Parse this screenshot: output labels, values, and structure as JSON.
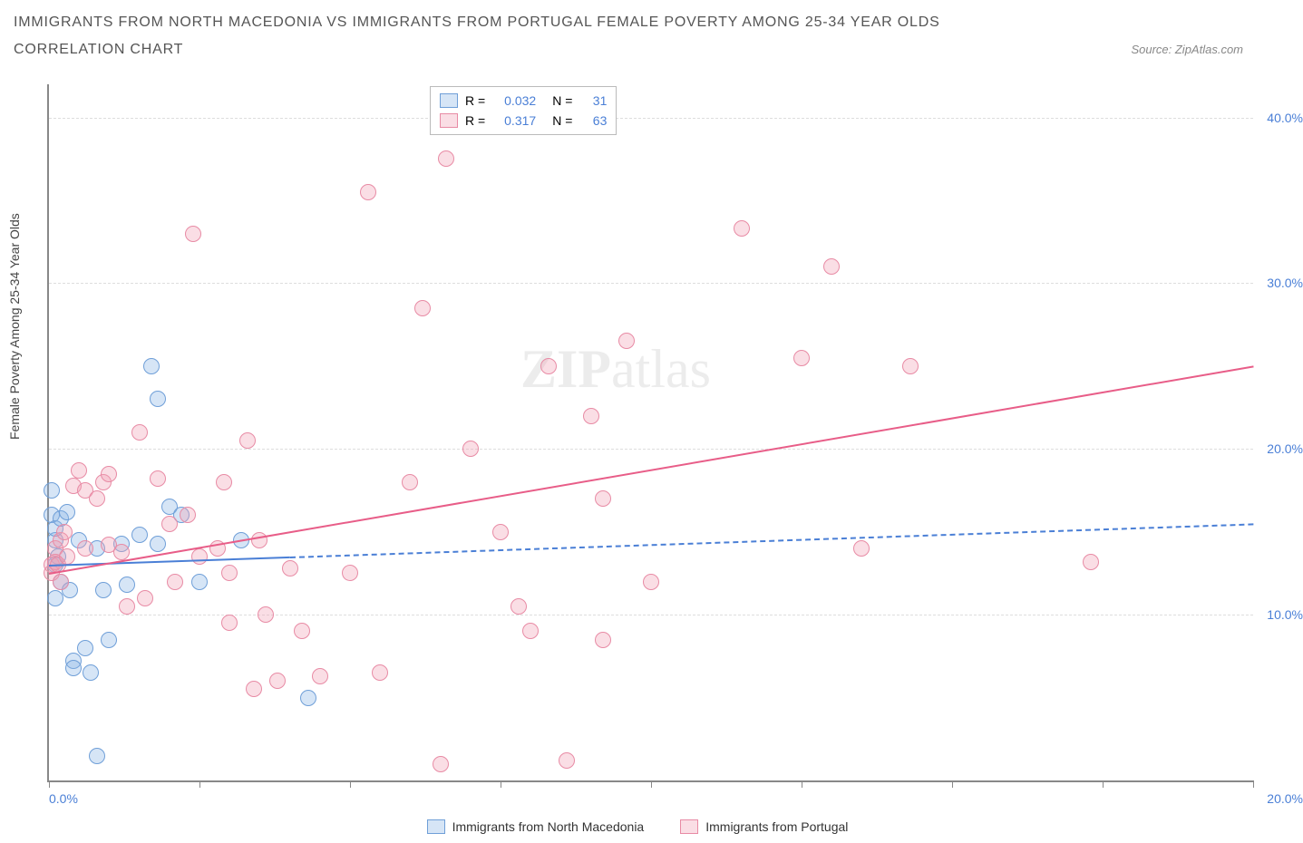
{
  "title_line1": "IMMIGRANTS FROM NORTH MACEDONIA VS IMMIGRANTS FROM PORTUGAL FEMALE POVERTY AMONG 25-34 YEAR OLDS",
  "title_line2": "CORRELATION CHART",
  "source_label": "Source: ZipAtlas.com",
  "y_axis_label": "Female Poverty Among 25-34 Year Olds",
  "watermark_bold": "ZIP",
  "watermark_rest": "atlas",
  "chart": {
    "type": "scatter",
    "xlim": [
      0,
      20
    ],
    "ylim": [
      0,
      42
    ],
    "x_ticks": [
      0,
      2.5,
      5,
      7.5,
      10,
      12.5,
      15,
      17.5,
      20
    ],
    "x_tick_labels": {
      "first": "0.0%",
      "last": "20.0%"
    },
    "y_gridlines": [
      10,
      20,
      30,
      40
    ],
    "y_tick_labels": [
      "10.0%",
      "20.0%",
      "30.0%",
      "40.0%"
    ],
    "background_color": "#ffffff",
    "grid_color": "#dddddd",
    "axis_color": "#888888",
    "label_color": "#4a7fd6",
    "marker_radius": 9,
    "marker_border_width": 1.5,
    "series": [
      {
        "name": "Immigrants from North Macedonia",
        "fill": "rgba(138,180,230,0.35)",
        "stroke": "#6f9fd8",
        "trend_color": "#4a7fd6",
        "trend": {
          "x0": 0,
          "y0": 13.0,
          "x1": 20,
          "y1": 15.5,
          "solid_until_x": 4.0
        },
        "R": "0.032",
        "N": "31",
        "points": [
          [
            0.05,
            17.5
          ],
          [
            0.05,
            16.0
          ],
          [
            0.1,
            14.5
          ],
          [
            0.1,
            15.2
          ],
          [
            0.1,
            13.0
          ],
          [
            0.1,
            11.0
          ],
          [
            0.15,
            13.5
          ],
          [
            0.2,
            15.8
          ],
          [
            0.2,
            12.0
          ],
          [
            0.3,
            16.2
          ],
          [
            0.35,
            11.5
          ],
          [
            0.4,
            7.2
          ],
          [
            0.4,
            6.8
          ],
          [
            0.5,
            14.5
          ],
          [
            0.6,
            8.0
          ],
          [
            0.7,
            6.5
          ],
          [
            0.8,
            1.5
          ],
          [
            0.8,
            14.0
          ],
          [
            0.9,
            11.5
          ],
          [
            1.0,
            8.5
          ],
          [
            1.2,
            14.3
          ],
          [
            1.3,
            11.8
          ],
          [
            1.5,
            14.8
          ],
          [
            1.7,
            25.0
          ],
          [
            1.8,
            23.0
          ],
          [
            1.8,
            14.3
          ],
          [
            2.0,
            16.5
          ],
          [
            2.2,
            16.0
          ],
          [
            2.5,
            12.0
          ],
          [
            3.2,
            14.5
          ],
          [
            4.3,
            5.0
          ]
        ]
      },
      {
        "name": "Immigrants from Portugal",
        "fill": "rgba(240,160,180,0.35)",
        "stroke": "#e88ba5",
        "trend_color": "#e85d88",
        "trend": {
          "x0": 0,
          "y0": 12.5,
          "x1": 20,
          "y1": 25.0,
          "solid_until_x": 20
        },
        "R": "0.317",
        "N": "63",
        "points": [
          [
            0.05,
            13.0
          ],
          [
            0.05,
            12.5
          ],
          [
            0.1,
            14.0
          ],
          [
            0.1,
            13.2
          ],
          [
            0.15,
            13.0
          ],
          [
            0.2,
            12.0
          ],
          [
            0.2,
            14.5
          ],
          [
            0.25,
            15.0
          ],
          [
            0.3,
            13.5
          ],
          [
            0.4,
            17.8
          ],
          [
            0.5,
            18.7
          ],
          [
            0.6,
            17.5
          ],
          [
            0.6,
            14.0
          ],
          [
            0.8,
            17.0
          ],
          [
            0.9,
            18.0
          ],
          [
            1.0,
            18.5
          ],
          [
            1.0,
            14.2
          ],
          [
            1.2,
            13.8
          ],
          [
            1.3,
            10.5
          ],
          [
            1.5,
            21.0
          ],
          [
            1.6,
            11.0
          ],
          [
            1.8,
            18.2
          ],
          [
            2.0,
            15.5
          ],
          [
            2.1,
            12.0
          ],
          [
            2.3,
            16.0
          ],
          [
            2.4,
            33.0
          ],
          [
            2.5,
            13.5
          ],
          [
            2.8,
            14.0
          ],
          [
            2.9,
            18.0
          ],
          [
            3.0,
            9.5
          ],
          [
            3.0,
            12.5
          ],
          [
            3.3,
            20.5
          ],
          [
            3.4,
            5.5
          ],
          [
            3.5,
            14.5
          ],
          [
            3.6,
            10.0
          ],
          [
            3.8,
            6.0
          ],
          [
            4.0,
            12.8
          ],
          [
            4.2,
            9.0
          ],
          [
            4.5,
            6.3
          ],
          [
            5.0,
            12.5
          ],
          [
            5.3,
            35.5
          ],
          [
            5.5,
            6.5
          ],
          [
            6.0,
            18.0
          ],
          [
            6.2,
            28.5
          ],
          [
            6.5,
            1.0
          ],
          [
            6.6,
            37.5
          ],
          [
            7.0,
            20.0
          ],
          [
            7.5,
            15.0
          ],
          [
            7.8,
            10.5
          ],
          [
            8.0,
            9.0
          ],
          [
            8.3,
            25.0
          ],
          [
            8.6,
            1.2
          ],
          [
            9.0,
            22.0
          ],
          [
            9.2,
            17.0
          ],
          [
            9.6,
            26.5
          ],
          [
            10.0,
            12.0
          ],
          [
            11.5,
            33.3
          ],
          [
            12.5,
            25.5
          ],
          [
            13.0,
            31.0
          ],
          [
            13.5,
            14.0
          ],
          [
            14.3,
            25.0
          ],
          [
            17.3,
            13.2
          ],
          [
            9.2,
            8.5
          ]
        ]
      }
    ],
    "stats_legend": {
      "R_label": "R =",
      "N_label": "N ="
    },
    "bottom_legend": [
      "Immigrants from North Macedonia",
      "Immigrants from Portugal"
    ]
  }
}
